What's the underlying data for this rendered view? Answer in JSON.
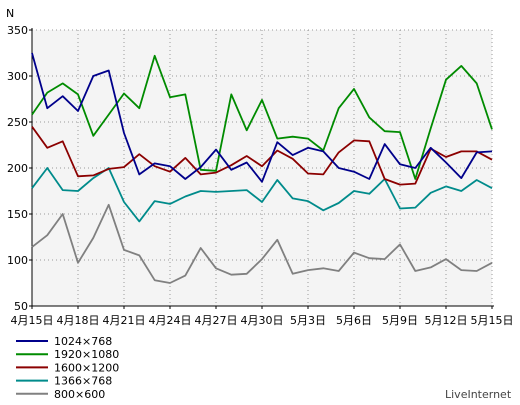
{
  "chart_data": {
    "type": "line",
    "ylabel": "N",
    "ylim": [
      50,
      350
    ],
    "yticks": [
      50,
      100,
      150,
      200,
      250,
      300,
      350
    ],
    "grid": true,
    "legend_position": "bottom-left",
    "x_tick_labels": [
      "4月15日",
      "4月18日",
      "4月21日",
      "4月24日",
      "4月27日",
      "4月30日",
      "5月3日",
      "5月6日",
      "5月9日",
      "5月12日",
      "5月15日"
    ],
    "x_tick_indices": [
      0,
      3,
      6,
      9,
      12,
      15,
      18,
      21,
      24,
      27,
      30
    ],
    "num_points": 31,
    "series": [
      {
        "name": "1024×768",
        "color": "#00008b",
        "values": [
          325,
          265,
          278,
          262,
          300,
          306,
          238,
          193,
          205,
          202,
          188,
          201,
          220,
          198,
          206,
          185,
          228,
          214,
          222,
          218,
          200,
          196,
          188,
          226,
          204,
          200,
          222,
          206,
          189,
          217,
          218
        ]
      },
      {
        "name": "1920×1080",
        "color": "#008b00",
        "values": [
          258,
          282,
          292,
          280,
          235,
          258,
          281,
          265,
          322,
          277,
          280,
          198,
          197,
          280,
          241,
          274,
          232,
          234,
          232,
          219,
          265,
          286,
          255,
          240,
          239,
          188,
          243,
          296,
          311,
          292,
          242
        ]
      },
      {
        "name": "1600×1200",
        "color": "#8b0000",
        "values": [
          245,
          222,
          229,
          191,
          192,
          199,
          201,
          215,
          202,
          196,
          211,
          193,
          195,
          203,
          213,
          202,
          219,
          210,
          194,
          193,
          217,
          230,
          229,
          188,
          182,
          183,
          221,
          212,
          218,
          218,
          209
        ]
      },
      {
        "name": "1366×768",
        "color": "#008b8b",
        "values": [
          178,
          200,
          176,
          175,
          189,
          200,
          163,
          142,
          164,
          161,
          169,
          175,
          174,
          175,
          176,
          163,
          187,
          167,
          164,
          154,
          162,
          175,
          172,
          188,
          156,
          157,
          173,
          180,
          175,
          187,
          178
        ]
      },
      {
        "name": "800×600",
        "color": "#808080",
        "values": [
          114,
          127,
          150,
          97,
          124,
          160,
          111,
          105,
          78,
          75,
          83,
          113,
          91,
          84,
          85,
          101,
          122,
          85,
          89,
          91,
          88,
          108,
          102,
          101,
          117,
          88,
          92,
          101,
          89,
          88,
          97
        ]
      }
    ]
  },
  "footer": {
    "brand": "LiveInternet"
  }
}
